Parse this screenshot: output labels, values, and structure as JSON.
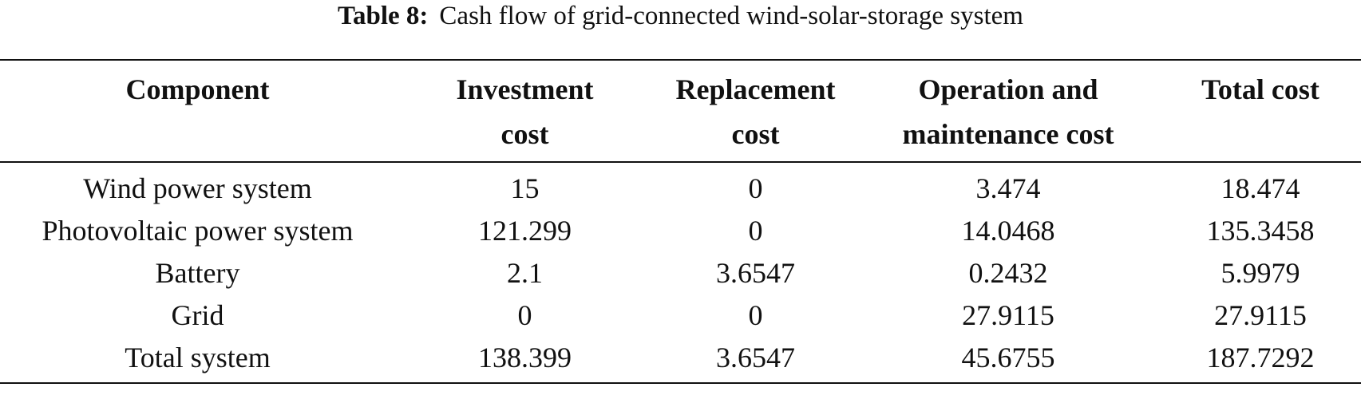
{
  "caption": {
    "label": "Table 8:",
    "text": "Cash flow of grid-connected wind-solar-storage system"
  },
  "table": {
    "headers": [
      {
        "line1": "Component",
        "line2": ""
      },
      {
        "line1": "Investment",
        "line2": "cost"
      },
      {
        "line1": "Replacement",
        "line2": "cost"
      },
      {
        "line1": "Operation and",
        "line2": "maintenance cost"
      },
      {
        "line1": "Total cost",
        "line2": ""
      }
    ],
    "rows": [
      [
        "Wind power system",
        "15",
        "0",
        "3.474",
        "18.474"
      ],
      [
        "Photovoltaic power system",
        "121.299",
        "0",
        "14.0468",
        "135.3458"
      ],
      [
        "Battery",
        "2.1",
        "3.6547",
        "0.2432",
        "5.9979"
      ],
      [
        "Grid",
        "0",
        "0",
        "27.9115",
        "27.9115"
      ],
      [
        "Total system",
        "138.399",
        "3.6547",
        "45.6755",
        "187.7292"
      ]
    ]
  }
}
